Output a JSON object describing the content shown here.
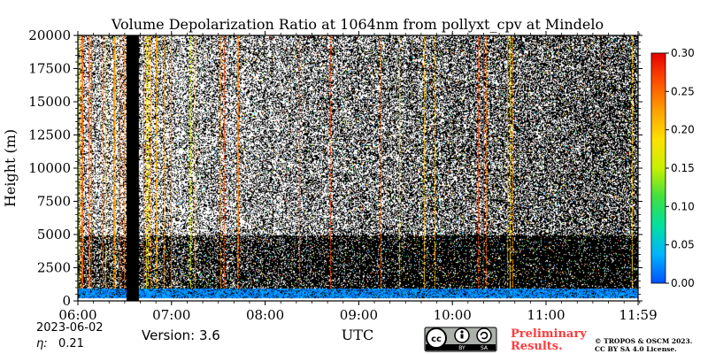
{
  "chart_data": {
    "type": "heatmap",
    "title": "Volume Depolarization Ratio at 1064nm from pollyxt_cpv at Mindelo",
    "xlabel": "UTC",
    "ylabel": "Height (m)",
    "x_ticks": [
      "06:00",
      "07:00",
      "08:00",
      "09:00",
      "10:00",
      "11:00",
      "11:59"
    ],
    "x_range_hours": [
      6.0,
      11.983
    ],
    "y_ticks": [
      0,
      2500,
      5000,
      7500,
      10000,
      12500,
      15000,
      17500,
      20000
    ],
    "y_tick_labels": [
      "0",
      "2500",
      "5000",
      "7500",
      "10000",
      "12500",
      "15000",
      "17500",
      "20000"
    ],
    "ylim": [
      0,
      20000
    ],
    "colorbar": {
      "range": [
        0.0,
        0.3
      ],
      "ticks": [
        "0.00",
        "0.05",
        "0.10",
        "0.15",
        "0.20",
        "0.25",
        "0.30"
      ],
      "colormap": [
        "#0050ff",
        "#00b4ff",
        "#00e0a0",
        "#40e040",
        "#c8f000",
        "#ffe000",
        "#ffa000",
        "#ff5000",
        "#e60000"
      ]
    },
    "features": {
      "missing_data_interval_utc": [
        "06:31",
        "06:39"
      ],
      "boundary_layer_top_m": 1000,
      "dust_layer_top_m": 5000,
      "low_layer_mean_depol": 0.03
    }
  },
  "footer": {
    "date": "2023-06-02",
    "eta_label": "η:",
    "eta_value": "0.21",
    "version": "Version: 3.6",
    "license_badge": [
      "cc",
      "BY",
      "SA"
    ],
    "preliminary_line1": "Preliminary",
    "preliminary_line2": "Results.",
    "copyright_line1": "© TROPOS & OSCM 2023.",
    "copyright_line2": "CC BY SA 4.0 License."
  },
  "colors": {
    "preliminary_text": "#ff3b3b",
    "missing_data": "#000000",
    "background": "#ffffff"
  }
}
